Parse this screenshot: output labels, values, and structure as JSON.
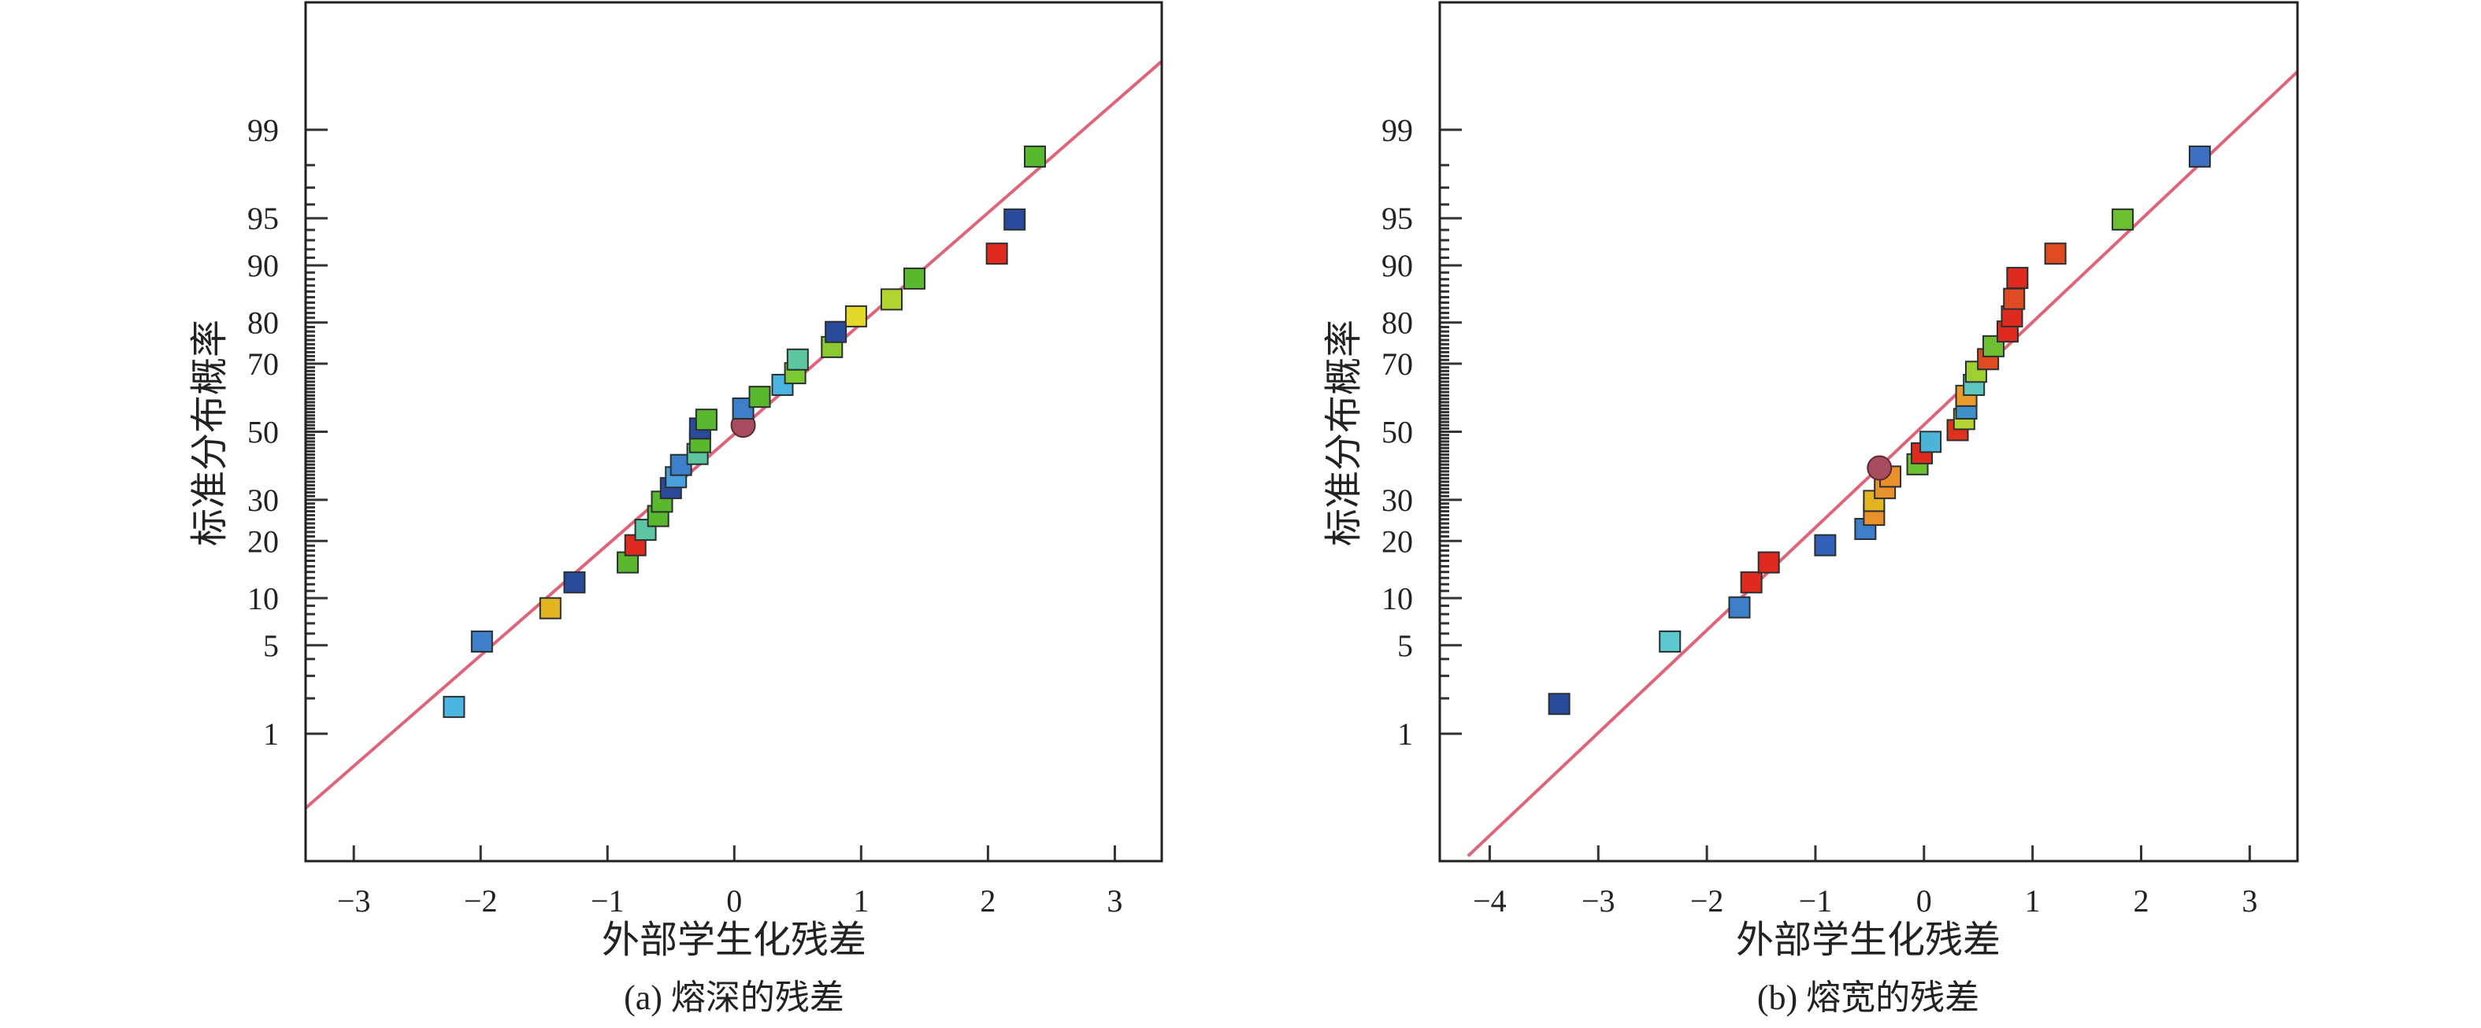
{
  "chart_data": [
    {
      "type": "scatter",
      "subtype": "normal probability plot",
      "caption": "(a) 熔深的残差",
      "xlabel": "外部学生化残差",
      "ylabel": "标准分布概率",
      "xlim": [
        -3.38,
        3.37
      ],
      "ylim": [
        0.047,
        99.953
      ],
      "xticks": [
        -3,
        -2,
        -1,
        0,
        1,
        2,
        3
      ],
      "xtick_labels": [
        "−3",
        "−2",
        "−1",
        "0",
        "1",
        "2",
        "3"
      ],
      "yticks": [
        1,
        5,
        10,
        20,
        30,
        50,
        70,
        80,
        90,
        95,
        99
      ],
      "ytick_labels": [
        "1",
        "5",
        "10",
        "20",
        "30",
        "50",
        "70",
        "80",
        "90",
        "95",
        "99"
      ],
      "grid": false,
      "fit_line": {
        "x": [
          -3.38,
          3.38
        ],
        "y": [
          0.187,
          99.79
        ],
        "color": "#e06478"
      },
      "points": [
        {
          "x": -2.21,
          "y": 1.7,
          "color": "#4ab5e0"
        },
        {
          "x": -1.99,
          "y": 5.3,
          "color": "#3d7fc8"
        },
        {
          "x": -1.45,
          "y": 8.7,
          "color": "#e2b422"
        },
        {
          "x": -1.26,
          "y": 12.3,
          "color": "#2a4a9c"
        },
        {
          "x": -0.84,
          "y": 15.7,
          "color": "#5ab82e"
        },
        {
          "x": -0.78,
          "y": 19.1,
          "color": "#e02a20"
        },
        {
          "x": -0.7,
          "y": 22.5,
          "color": "#5cc6a0"
        },
        {
          "x": -0.6,
          "y": 25.8,
          "color": "#5ab82e"
        },
        {
          "x": -0.57,
          "y": 29.5,
          "color": "#5ab82e"
        },
        {
          "x": -0.5,
          "y": 33.2,
          "color": "#2a4a9c"
        },
        {
          "x": -0.46,
          "y": 36.3,
          "color": "#4aa0dc"
        },
        {
          "x": -0.42,
          "y": 39.9,
          "color": "#3d7fc8"
        },
        {
          "x": -0.29,
          "y": 43.2,
          "color": "#5cc6a0"
        },
        {
          "x": -0.27,
          "y": 46.8,
          "color": "#5ab82e"
        },
        {
          "x": -0.27,
          "y": 51.0,
          "color": "#2a4a9c"
        },
        {
          "x": -0.22,
          "y": 53.7,
          "color": "#5ab82e"
        },
        {
          "x": 0.07,
          "y": 52.0,
          "color": "#a84c60",
          "marker": "circle"
        },
        {
          "x": 0.07,
          "y": 57.1,
          "color": "#3d7fc8"
        },
        {
          "x": 0.2,
          "y": 60.6,
          "color": "#5ab82e"
        },
        {
          "x": 0.38,
          "y": 64.1,
          "color": "#4ab5e0"
        },
        {
          "x": 0.48,
          "y": 67.4,
          "color": "#7cc832"
        },
        {
          "x": 0.5,
          "y": 71.1,
          "color": "#5cc6a0"
        },
        {
          "x": 0.77,
          "y": 74.3,
          "color": "#8cc832"
        },
        {
          "x": 0.8,
          "y": 77.9,
          "color": "#2a4a9c"
        },
        {
          "x": 0.96,
          "y": 81.3,
          "color": "#e4d828"
        },
        {
          "x": 1.24,
          "y": 84.6,
          "color": "#b4d434"
        },
        {
          "x": 1.42,
          "y": 88.1,
          "color": "#5ab82e"
        },
        {
          "x": 2.07,
          "y": 91.5,
          "color": "#e02a20"
        },
        {
          "x": 2.21,
          "y": 94.9,
          "color": "#2a4a9c"
        },
        {
          "x": 2.37,
          "y": 98.3,
          "color": "#5ab82e"
        }
      ]
    },
    {
      "type": "scatter",
      "subtype": "normal probability plot",
      "caption": "(b) 熔宽的残差",
      "xlabel": "外部学生化残差",
      "ylabel": "标准分布概率",
      "xlim": [
        -4.46,
        3.44
      ],
      "ylim": [
        0.047,
        99.953
      ],
      "xticks": [
        -4,
        -3,
        -2,
        -1,
        0,
        1,
        2,
        3
      ],
      "xtick_labels": [
        "−4",
        "−3",
        "−2",
        "−1",
        "0",
        "1",
        "2",
        "3"
      ],
      "yticks": [
        1,
        5,
        10,
        20,
        30,
        50,
        70,
        80,
        90,
        95,
        99
      ],
      "ytick_labels": [
        "1",
        "5",
        "10",
        "20",
        "30",
        "50",
        "70",
        "80",
        "90",
        "95",
        "99"
      ],
      "grid": false,
      "fit_line": {
        "x": [
          -4.2,
          3.45
        ],
        "y": [
          0.054,
          99.73
        ],
        "color": "#e06478"
      },
      "points": [
        {
          "x": -3.36,
          "y": 1.8,
          "color": "#2a4a9c"
        },
        {
          "x": -2.34,
          "y": 5.3,
          "color": "#5ec8d0"
        },
        {
          "x": -1.7,
          "y": 8.8,
          "color": "#3d7fc8"
        },
        {
          "x": -1.59,
          "y": 12.3,
          "color": "#e02a20"
        },
        {
          "x": -1.43,
          "y": 15.7,
          "color": "#e02a20"
        },
        {
          "x": -0.91,
          "y": 19.1,
          "color": "#3060b8"
        },
        {
          "x": -0.54,
          "y": 22.7,
          "color": "#3d7fc8"
        },
        {
          "x": -0.46,
          "y": 26.1,
          "color": "#e8902a"
        },
        {
          "x": -0.46,
          "y": 29.7,
          "color": "#e2b422"
        },
        {
          "x": -0.36,
          "y": 33.2,
          "color": "#e8902a"
        },
        {
          "x": -0.31,
          "y": 36.5,
          "color": "#e8902a"
        },
        {
          "x": -0.41,
          "y": 39.0,
          "color": "#a84c60",
          "marker": "circle"
        },
        {
          "x": -0.06,
          "y": 40.1,
          "color": "#6cc030"
        },
        {
          "x": -0.02,
          "y": 43.4,
          "color": "#e02a20"
        },
        {
          "x": 0.06,
          "y": 46.9,
          "color": "#4ab5d8"
        },
        {
          "x": 0.31,
          "y": 50.5,
          "color": "#e0301e"
        },
        {
          "x": 0.37,
          "y": 53.9,
          "color": "#b4d434"
        },
        {
          "x": 0.39,
          "y": 57.1,
          "color": "#3d90c8"
        },
        {
          "x": 0.39,
          "y": 60.9,
          "color": "#e89a2a"
        },
        {
          "x": 0.46,
          "y": 64.1,
          "color": "#5ec8c0"
        },
        {
          "x": 0.48,
          "y": 67.8,
          "color": "#9cd030"
        },
        {
          "x": 0.59,
          "y": 71.2,
          "color": "#e04a20"
        },
        {
          "x": 0.64,
          "y": 74.5,
          "color": "#6cc030"
        },
        {
          "x": 0.77,
          "y": 78.0,
          "color": "#e02a20"
        },
        {
          "x": 0.81,
          "y": 81.3,
          "color": "#e02a20"
        },
        {
          "x": 0.83,
          "y": 84.7,
          "color": "#e04a20"
        },
        {
          "x": 0.86,
          "y": 88.2,
          "color": "#e02a20"
        },
        {
          "x": 1.21,
          "y": 91.5,
          "color": "#e04a20"
        },
        {
          "x": 1.83,
          "y": 94.9,
          "color": "#6cc030"
        },
        {
          "x": 2.54,
          "y": 98.3,
          "color": "#3d70c0"
        }
      ]
    }
  ]
}
